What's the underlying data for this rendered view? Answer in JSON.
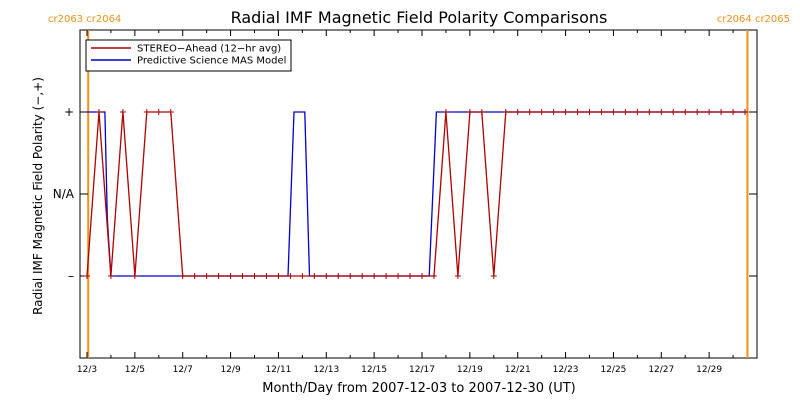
{
  "chart_data": {
    "type": "line",
    "title": "Radial IMF Magnetic Field Polarity Comparisons",
    "xlabel": "Month/Day from 2007-12-03 to 2007-12-30 (UT)",
    "ylabel": "Radial IMF Magnetic Field Polarity (−,+)",
    "xlim": [
      0,
      28
    ],
    "ylim": [
      -2,
      2
    ],
    "x_tick_labels": [
      "12/3",
      "12/5",
      "12/7",
      "12/9",
      "12/11",
      "12/13",
      "12/15",
      "12/17",
      "12/19",
      "12/21",
      "12/23",
      "12/25",
      "12/27",
      "12/29"
    ],
    "x_tick_values": [
      0,
      2,
      4,
      6,
      8,
      10,
      12,
      14,
      16,
      18,
      20,
      22,
      24,
      26
    ],
    "y_ticks": [
      {
        "value": 1,
        "label": "+"
      },
      {
        "value": 0,
        "label": "N/A"
      },
      {
        "value": -1,
        "label": "–"
      }
    ],
    "rotation_markers": [
      {
        "x": 0.05,
        "labels": [
          "cr2063",
          "cr2064"
        ],
        "side": "left"
      },
      {
        "x": 27.6,
        "labels": [
          "cr2064",
          "cr2065"
        ],
        "side": "right"
      }
    ],
    "legend_position": "top-left",
    "series": [
      {
        "name": "STEREO−Ahead (12−hr avg)",
        "color": "#b00000",
        "markers": true,
        "x": [
          0,
          0.5,
          1,
          1.5,
          2,
          2.5,
          3,
          3.5,
          4,
          4.5,
          5,
          5.5,
          6,
          6.5,
          7,
          7.5,
          8,
          8.5,
          9,
          9.5,
          10,
          10.5,
          11,
          11.5,
          12,
          12.5,
          13,
          13.5,
          14,
          14.5,
          15,
          15.5,
          16,
          16.5,
          17,
          17.5,
          18,
          18.5,
          19,
          19.5,
          20,
          20.5,
          21,
          21.5,
          22,
          22.5,
          23,
          23.5,
          24,
          24.5,
          25,
          25.5,
          26,
          26.5,
          27,
          27.5
        ],
        "y": [
          -1,
          1,
          -1,
          1,
          -1,
          1,
          1,
          1,
          -1,
          -1,
          -1,
          -1,
          -1,
          -1,
          -1,
          -1,
          -1,
          -1,
          -1,
          -1,
          -1,
          -1,
          -1,
          -1,
          -1,
          -1,
          -1,
          -1,
          -1,
          -1,
          1,
          -1,
          1,
          1,
          -1,
          1,
          1,
          1,
          1,
          1,
          1,
          1,
          1,
          1,
          1,
          1,
          1,
          1,
          1,
          1,
          1,
          1,
          1,
          1,
          1,
          1
        ]
      },
      {
        "name": "Predictive Science MAS Model",
        "color": "#0000cc",
        "markers": false,
        "x": [
          0,
          0.75,
          0.85,
          1.0,
          1.4,
          8.4,
          8.65,
          9.1,
          9.3,
          14.3,
          14.6,
          27.6
        ],
        "y": [
          1,
          1,
          -0.3,
          -1,
          -1,
          -1,
          1,
          1,
          -1,
          -1,
          1,
          1
        ]
      }
    ]
  }
}
